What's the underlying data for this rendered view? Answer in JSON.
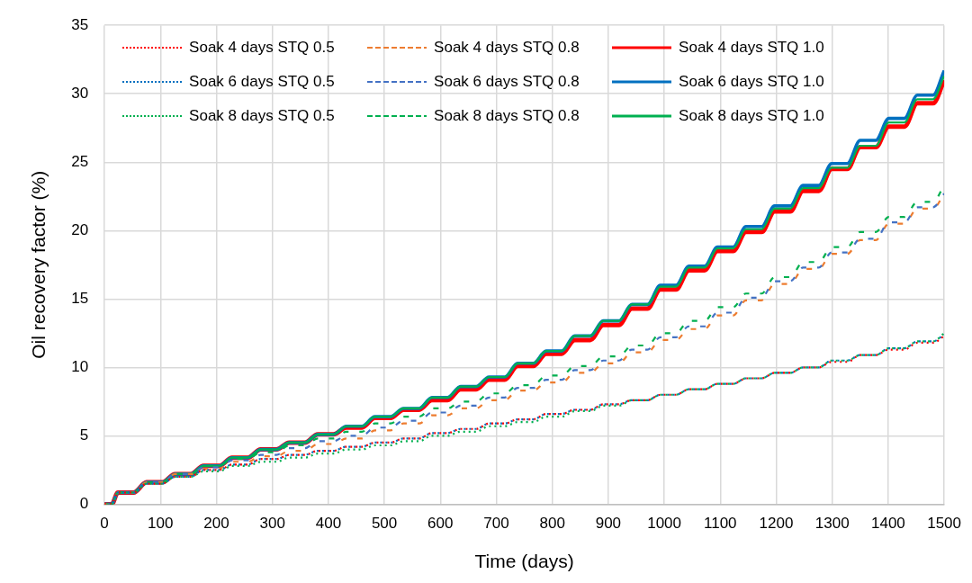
{
  "chart_data": {
    "type": "line",
    "xlabel": "Time (days)",
    "ylabel": "Oil recovery factor (%)",
    "marker": "none",
    "grid": true,
    "legend": "top left",
    "xlim": [
      0,
      1500
    ],
    "xticks": [
      0,
      100,
      200,
      300,
      400,
      500,
      600,
      700,
      800,
      900,
      1000,
      1100,
      1200,
      1300,
      1400,
      1500
    ],
    "ylim": [
      0,
      35
    ],
    "yticks": [
      0,
      5,
      10,
      15,
      20,
      25,
      30,
      35
    ],
    "x": [
      0,
      13,
      24,
      52,
      75,
      103,
      126,
      154,
      177,
      205,
      228,
      256,
      279,
      307,
      330,
      358,
      381,
      409,
      432,
      460,
      483,
      511,
      534,
      562,
      585,
      613,
      636,
      664,
      687,
      715,
      738,
      766,
      789,
      817,
      840,
      868,
      891,
      919,
      942,
      970,
      993,
      1021,
      1044,
      1072,
      1095,
      1123,
      1146,
      1174,
      1197,
      1225,
      1248,
      1276,
      1299,
      1327,
      1350,
      1378,
      1401,
      1429,
      1452,
      1480,
      1500
    ],
    "series": [
      {
        "name": "Soak 4 days STQ 0.5",
        "color": "#ff0000",
        "line_style": "dotted",
        "values": [
          0,
          0,
          0.85,
          0.85,
          1.5,
          1.5,
          2.0,
          2.0,
          2.5,
          2.5,
          2.9,
          2.9,
          3.3,
          3.3,
          3.6,
          3.6,
          3.9,
          3.9,
          4.2,
          4.2,
          4.5,
          4.5,
          4.8,
          4.8,
          5.2,
          5.2,
          5.5,
          5.5,
          5.9,
          5.9,
          6.2,
          6.2,
          6.6,
          6.6,
          6.9,
          6.9,
          7.3,
          7.3,
          7.6,
          7.6,
          8.0,
          8.0,
          8.4,
          8.4,
          8.8,
          8.8,
          9.2,
          9.2,
          9.6,
          9.6,
          10.0,
          10.0,
          10.4,
          10.4,
          10.9,
          10.9,
          11.3,
          11.3,
          11.8,
          11.8,
          12.3
        ]
      },
      {
        "name": "Soak 4 days STQ 0.8",
        "color": "#ed7d31",
        "line_style": "dashed",
        "values": [
          0,
          0,
          0.85,
          0.85,
          1.6,
          1.6,
          2.2,
          2.2,
          2.6,
          2.6,
          3.1,
          3.1,
          3.5,
          3.5,
          3.9,
          3.9,
          4.4,
          4.4,
          4.8,
          4.8,
          5.4,
          5.4,
          5.9,
          5.9,
          6.5,
          6.5,
          7.0,
          7.0,
          7.6,
          7.6,
          8.3,
          8.3,
          8.9,
          8.9,
          9.6,
          9.6,
          10.3,
          10.3,
          11.1,
          11.1,
          12.0,
          12.0,
          12.8,
          12.8,
          13.8,
          13.8,
          14.9,
          14.9,
          16.1,
          16.1,
          17.2,
          17.2,
          18.3,
          18.3,
          19.3,
          19.3,
          20.5,
          20.5,
          21.6,
          21.6,
          22.7
        ]
      },
      {
        "name": "Soak 4 days STQ 1.0",
        "color": "#ff0000",
        "line_style": "solid",
        "values": [
          0,
          0,
          0.85,
          0.85,
          1.6,
          1.6,
          2.2,
          2.2,
          2.8,
          2.8,
          3.4,
          3.4,
          4.0,
          4.0,
          4.5,
          4.5,
          5.1,
          5.1,
          5.6,
          5.6,
          6.3,
          6.3,
          6.9,
          6.9,
          7.6,
          7.6,
          8.4,
          8.4,
          9.1,
          9.1,
          10.1,
          10.1,
          11.0,
          11.0,
          12.0,
          12.0,
          13.1,
          13.1,
          14.3,
          14.3,
          15.7,
          15.7,
          17.1,
          17.1,
          18.5,
          18.5,
          19.9,
          19.9,
          21.4,
          21.4,
          22.9,
          22.9,
          24.5,
          24.5,
          26.1,
          26.1,
          27.6,
          27.6,
          29.3,
          29.3,
          31.0
        ]
      },
      {
        "name": "Soak 6 days STQ 0.5",
        "color": "#0070c0",
        "line_style": "dotted",
        "values": [
          0,
          0,
          0.85,
          0.85,
          1.5,
          1.5,
          2.0,
          2.0,
          2.5,
          2.5,
          2.9,
          2.9,
          3.3,
          3.3,
          3.6,
          3.6,
          3.9,
          3.9,
          4.2,
          4.2,
          4.5,
          4.5,
          4.8,
          4.8,
          5.2,
          5.2,
          5.5,
          5.5,
          5.9,
          5.9,
          6.2,
          6.2,
          6.6,
          6.6,
          6.9,
          6.9,
          7.3,
          7.3,
          7.6,
          7.6,
          8.0,
          8.0,
          8.4,
          8.4,
          8.8,
          8.8,
          9.2,
          9.2,
          9.6,
          9.6,
          10.0,
          10.0,
          10.5,
          10.5,
          10.9,
          10.9,
          11.4,
          11.4,
          11.9,
          11.9,
          12.4
        ]
      },
      {
        "name": "Soak 6 days STQ 0.8",
        "color": "#4472c4",
        "line_style": "dashed",
        "values": [
          0,
          0,
          0.85,
          0.85,
          1.6,
          1.6,
          2.2,
          2.2,
          2.7,
          2.7,
          3.2,
          3.2,
          3.6,
          3.6,
          4.1,
          4.1,
          4.6,
          4.6,
          5.0,
          5.0,
          5.6,
          5.6,
          6.1,
          6.1,
          6.7,
          6.7,
          7.2,
          7.2,
          7.8,
          7.8,
          8.5,
          8.5,
          9.1,
          9.1,
          9.8,
          9.8,
          10.5,
          10.5,
          11.3,
          11.3,
          12.2,
          12.2,
          13.0,
          13.0,
          14.0,
          14.0,
          15.1,
          15.1,
          16.3,
          16.3,
          17.3,
          17.3,
          18.4,
          18.4,
          19.4,
          19.4,
          20.6,
          20.6,
          21.7,
          21.7,
          22.7
        ]
      },
      {
        "name": "Soak 6 days STQ 1.0",
        "color": "#0070c0",
        "line_style": "solid",
        "values": [
          0,
          0,
          0.85,
          0.85,
          1.6,
          1.6,
          2.2,
          2.2,
          2.8,
          2.8,
          3.4,
          3.4,
          4.0,
          4.0,
          4.5,
          4.5,
          5.1,
          5.1,
          5.7,
          5.7,
          6.4,
          6.4,
          7.0,
          7.0,
          7.8,
          7.8,
          8.6,
          8.6,
          9.3,
          9.3,
          10.3,
          10.3,
          11.2,
          11.2,
          12.3,
          12.3,
          13.4,
          13.4,
          14.6,
          14.6,
          16.0,
          16.0,
          17.4,
          17.4,
          18.8,
          18.8,
          20.3,
          20.3,
          21.8,
          21.8,
          23.3,
          23.3,
          24.9,
          24.9,
          26.6,
          26.6,
          28.2,
          28.2,
          29.9,
          29.9,
          31.7
        ]
      },
      {
        "name": "Soak 8 days STQ 0.5",
        "color": "#00b050",
        "line_style": "dotted",
        "values": [
          0,
          0,
          0.85,
          0.85,
          1.5,
          1.5,
          2.0,
          2.0,
          2.4,
          2.4,
          2.8,
          2.8,
          3.1,
          3.1,
          3.4,
          3.4,
          3.7,
          3.7,
          4.0,
          4.0,
          4.3,
          4.3,
          4.6,
          4.6,
          5.0,
          5.0,
          5.3,
          5.3,
          5.7,
          5.7,
          6.0,
          6.0,
          6.4,
          6.4,
          6.8,
          6.8,
          7.2,
          7.2,
          7.6,
          7.6,
          8.0,
          8.0,
          8.4,
          8.4,
          8.8,
          8.8,
          9.2,
          9.2,
          9.6,
          9.6,
          10.0,
          10.0,
          10.5,
          10.5,
          10.9,
          10.9,
          11.4,
          11.4,
          11.9,
          11.9,
          12.5
        ]
      },
      {
        "name": "Soak 8 days STQ 0.8",
        "color": "#00b050",
        "line_style": "dashed",
        "values": [
          0,
          0,
          0.85,
          0.85,
          1.6,
          1.6,
          2.2,
          2.2,
          2.8,
          2.8,
          3.3,
          3.3,
          3.8,
          3.8,
          4.3,
          4.3,
          4.8,
          4.8,
          5.3,
          5.3,
          5.9,
          5.9,
          6.4,
          6.4,
          7.0,
          7.0,
          7.5,
          7.5,
          8.1,
          8.1,
          8.7,
          8.7,
          9.4,
          9.4,
          10.1,
          10.1,
          10.8,
          10.8,
          11.6,
          11.6,
          12.5,
          12.5,
          13.4,
          13.4,
          14.4,
          14.4,
          15.4,
          15.4,
          16.6,
          16.6,
          17.7,
          17.7,
          18.8,
          18.8,
          19.9,
          19.9,
          21.0,
          21.0,
          22.1,
          22.1,
          23.3
        ]
      },
      {
        "name": "Soak 8 days STQ 1.0",
        "color": "#00b050",
        "line_style": "solid",
        "values": [
          0,
          0,
          0.85,
          0.85,
          1.6,
          1.6,
          2.2,
          2.2,
          2.8,
          2.8,
          3.4,
          3.4,
          4.0,
          4.0,
          4.5,
          4.5,
          5.1,
          5.1,
          5.7,
          5.7,
          6.4,
          6.4,
          7.0,
          7.0,
          7.8,
          7.8,
          8.6,
          8.6,
          9.3,
          9.3,
          10.3,
          10.3,
          11.2,
          11.2,
          12.3,
          12.3,
          13.4,
          13.4,
          14.6,
          14.6,
          15.9,
          15.9,
          17.3,
          17.3,
          18.7,
          18.7,
          20.1,
          20.1,
          21.6,
          21.6,
          23.1,
          23.1,
          24.6,
          24.6,
          26.2,
          26.2,
          27.9,
          27.9,
          29.6,
          29.6,
          31.3
        ]
      }
    ]
  }
}
